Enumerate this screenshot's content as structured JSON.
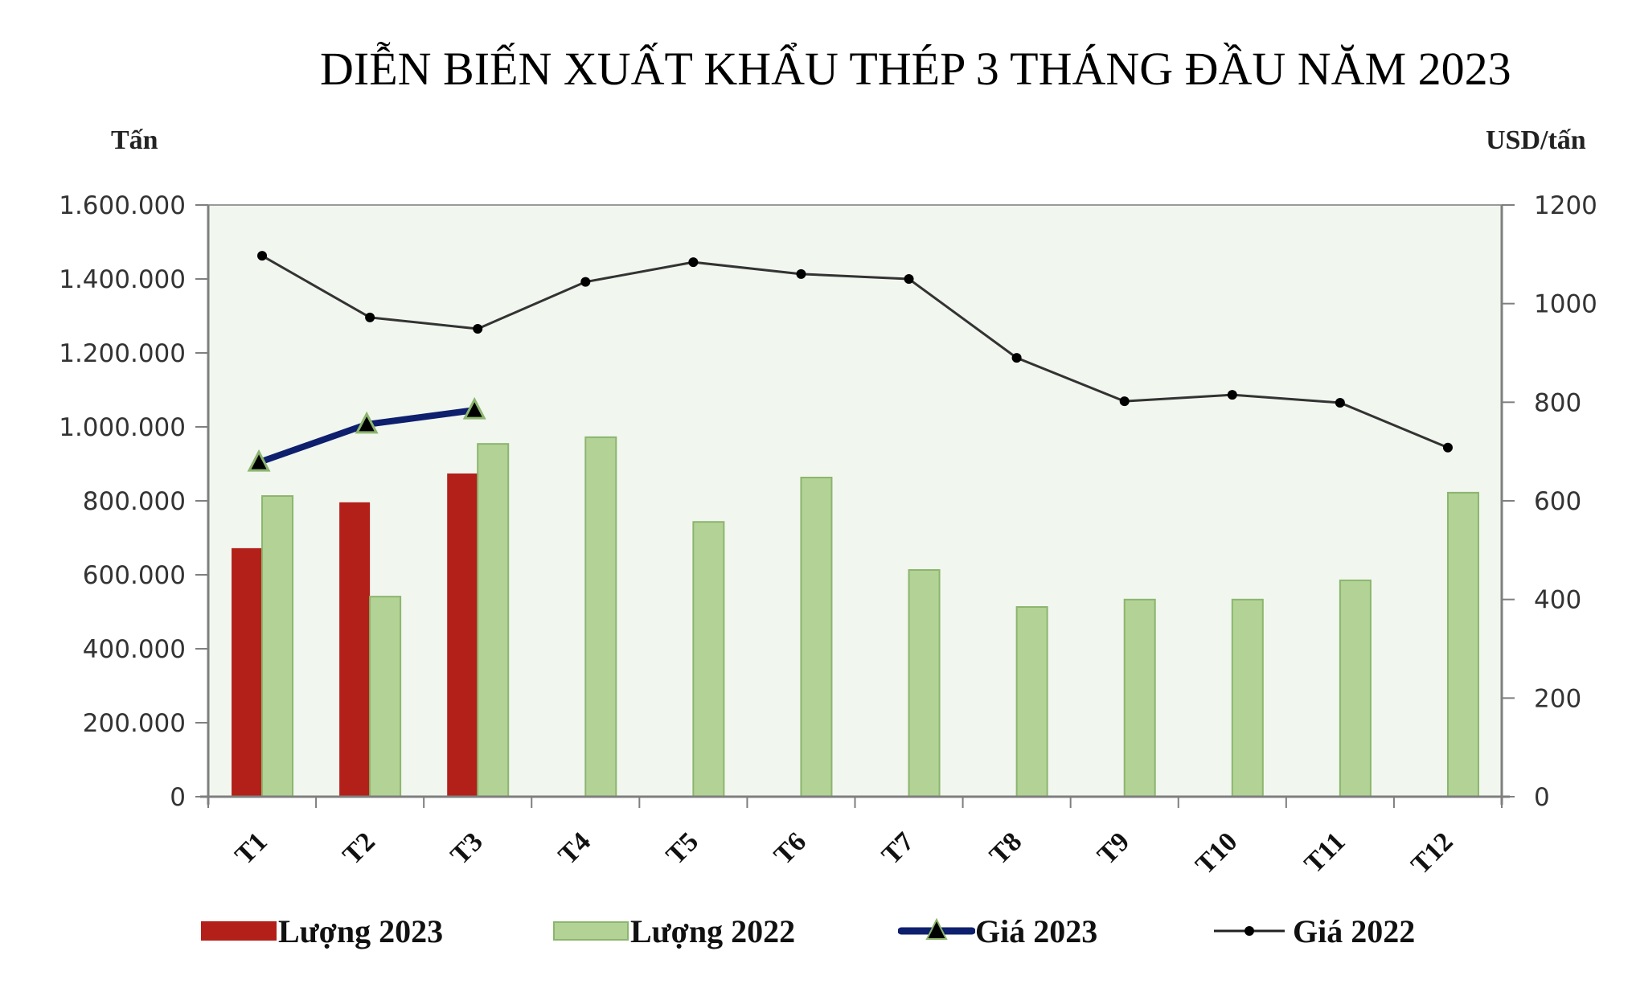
{
  "title": "DIỄN BIẾN XUẤT KHẨU THÉP 3 THÁNG ĐẦU NĂM 2023",
  "axes": {
    "left_unit": "Tấn",
    "right_unit": "USD/tấn",
    "left_ticks": [
      "0",
      "200.000",
      "400.000",
      "600.000",
      "800.000",
      "1.000.000",
      "1.200.000",
      "1.400.000",
      "1.600.000"
    ],
    "right_ticks": [
      "0",
      "200",
      "400",
      "600",
      "800",
      "1000",
      "1200"
    ]
  },
  "legend": {
    "items": [
      {
        "label": "Lượng 2023",
        "type": "bar",
        "color": "#b22019"
      },
      {
        "label": "Lượng 2022",
        "type": "bar",
        "color": "#b2d395"
      },
      {
        "label": "Giá 2023",
        "type": "line-triangle",
        "color": "#0e1f6e"
      },
      {
        "label": "Giá 2022",
        "type": "line-dot",
        "color": "#1a1a1a"
      }
    ]
  },
  "colors": {
    "plot_bg": "#f1f6ef",
    "bar_2023": "#b22019",
    "bar_2022": "#b2d395",
    "bar_2022_border": "#8cb56e",
    "line_2023": "#0e1f6e",
    "marker_2023_border": "#8cb56e",
    "line_2022": "#333333",
    "axis": "#7f7f7f"
  },
  "chart_data": {
    "type": "bar",
    "title": "DIỄN BIẾN XUẤT KHẨU THÉP 3 THÁNG ĐẦU NĂM 2023",
    "categories": [
      "T1",
      "T2",
      "T3",
      "T4",
      "T5",
      "T6",
      "T7",
      "T8",
      "T9",
      "T10",
      "T11",
      "T12"
    ],
    "xlabel": "",
    "ylabel": "Tấn",
    "ylabel_right": "USD/tấn",
    "ylim": [
      0,
      1600000
    ],
    "ylim_right": [
      0,
      1200
    ],
    "grid": false,
    "legend_position": "bottom",
    "series": [
      {
        "name": "Lượng 2023",
        "type": "bar",
        "axis": "left",
        "values": [
          672000,
          796000,
          874000,
          null,
          null,
          null,
          null,
          null,
          null,
          null,
          null,
          null
        ]
      },
      {
        "name": "Lượng 2022",
        "type": "bar",
        "axis": "left",
        "values": [
          813000,
          541000,
          954000,
          972000,
          743000,
          863000,
          613000,
          513000,
          533000,
          533000,
          585000,
          822000
        ]
      },
      {
        "name": "Giá 2023",
        "type": "line",
        "axis": "right",
        "marker": "triangle",
        "values": [
          678,
          755,
          784,
          null,
          null,
          null,
          null,
          null,
          null,
          null,
          null,
          null
        ]
      },
      {
        "name": "Giá 2022",
        "type": "line",
        "axis": "right",
        "marker": "dot",
        "values": [
          1097,
          972,
          949,
          1044,
          1084,
          1060,
          1050,
          890,
          802,
          815,
          799,
          708
        ]
      }
    ]
  }
}
